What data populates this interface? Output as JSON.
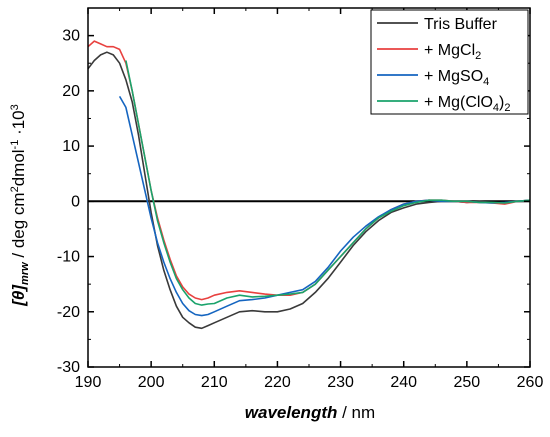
{
  "chart_data": {
    "type": "line",
    "xlabel": {
      "italic": "wavelength",
      "unit": " / nm"
    },
    "ylabel": {
      "prefix": "[θ]",
      "sub": "mrw",
      "unit": " / deg cm",
      "sup2": "2",
      "mid": "dmol",
      "supm1": "-1",
      "dot": " ·10",
      "sup3": "3"
    },
    "xlim": [
      190,
      260
    ],
    "ylim": [
      -30,
      35
    ],
    "xticks": [
      "190",
      "200",
      "210",
      "220",
      "230",
      "240",
      "250",
      "260"
    ],
    "yticks": [
      "30",
      "20",
      "10",
      "0",
      "-10",
      "-20",
      "-30"
    ],
    "zero_line": true,
    "legend_position": "top-right",
    "series": [
      {
        "name": "Tris Buffer",
        "color": "#3a3a3a",
        "x": [
          190,
          191,
          192,
          193,
          194,
          195,
          196,
          197,
          198,
          199,
          200,
          201,
          202,
          203,
          204,
          205,
          206,
          207,
          208,
          209,
          210,
          212,
          214,
          216,
          218,
          220,
          222,
          224,
          226,
          228,
          230,
          232,
          234,
          236,
          238,
          240,
          242,
          244,
          246,
          248,
          250,
          252,
          254,
          256,
          258,
          260
        ],
        "y": [
          24,
          25.5,
          26.5,
          27,
          26.5,
          25,
          22,
          18,
          12,
          5,
          -2,
          -8,
          -12.5,
          -16,
          -19,
          -21,
          -22,
          -22.8,
          -23,
          -22.5,
          -22,
          -21,
          -20,
          -19.8,
          -20,
          -20,
          -19.5,
          -18.5,
          -16.5,
          -14,
          -11,
          -8,
          -5.5,
          -3.5,
          -2,
          -1.2,
          -0.5,
          -0.2,
          0,
          0,
          -0.2,
          0,
          -0.2,
          -0.3,
          0,
          0
        ]
      },
      {
        "name": "+ MgCl₂",
        "label_main": "+ MgCl",
        "label_sub": "2",
        "color": "#e8413f",
        "x": [
          190,
          191,
          192,
          193,
          194,
          195,
          196,
          197,
          198,
          199,
          200,
          201,
          202,
          203,
          204,
          205,
          206,
          207,
          208,
          209,
          210,
          212,
          214,
          216,
          218,
          220,
          222,
          224,
          226,
          228,
          230,
          232,
          234,
          236,
          238,
          240,
          242,
          244,
          246,
          248,
          250,
          252,
          254,
          256,
          258,
          260
        ],
        "y": [
          28,
          29,
          28.5,
          28,
          28,
          27.5,
          25,
          20,
          14,
          8,
          2,
          -3,
          -7,
          -10.5,
          -13.5,
          -15.5,
          -16.8,
          -17.5,
          -17.8,
          -17.5,
          -17,
          -16.5,
          -16.2,
          -16.5,
          -16.8,
          -17,
          -17,
          -16.5,
          -15,
          -12.5,
          -10,
          -7.5,
          -5,
          -3,
          -1.5,
          -0.5,
          0,
          0.2,
          0.2,
          0,
          -0.2,
          -0.2,
          -0.3,
          -0.5,
          0,
          0.2
        ]
      },
      {
        "name": "+ MgSO₄",
        "label_main": "+ MgSO",
        "label_sub": "4",
        "color": "#1565c0",
        "x": [
          195,
          196,
          197,
          198,
          199,
          200,
          201,
          202,
          203,
          204,
          205,
          206,
          207,
          208,
          209,
          210,
          212,
          214,
          216,
          218,
          220,
          222,
          224,
          226,
          228,
          230,
          232,
          234,
          236,
          238,
          240,
          242,
          244,
          246,
          248,
          250,
          252,
          254,
          256,
          258,
          260
        ],
        "y": [
          19,
          17,
          12,
          7,
          2,
          -3,
          -7.5,
          -11,
          -14,
          -16.5,
          -18.5,
          -19.8,
          -20.5,
          -20.7,
          -20.5,
          -20,
          -19,
          -18,
          -17.8,
          -17.5,
          -17,
          -16.5,
          -16,
          -14.5,
          -12,
          -9,
          -6.5,
          -4.5,
          -2.8,
          -1.5,
          -0.5,
          0,
          0.2,
          0,
          0,
          0,
          -0.2,
          -0.3,
          -0.2,
          0,
          0.2
        ]
      },
      {
        "name": "+ Mg(ClO₄)₂",
        "label_main": "+ Mg(ClO",
        "label_sub": "4",
        "label_mid": ")",
        "label_sub2": "2",
        "color": "#1aa36b",
        "x": [
          196,
          197,
          198,
          199,
          200,
          201,
          202,
          203,
          204,
          205,
          206,
          207,
          208,
          209,
          210,
          212,
          214,
          216,
          218,
          220,
          222,
          224,
          226,
          228,
          230,
          232,
          234,
          236,
          238,
          240,
          242,
          244,
          246,
          248,
          250,
          252,
          254,
          256,
          258,
          260
        ],
        "y": [
          25.5,
          20,
          14,
          8,
          2,
          -3.5,
          -7.5,
          -11,
          -14,
          -16,
          -17.5,
          -18.5,
          -18.8,
          -18.6,
          -18.5,
          -17.5,
          -17,
          -17.3,
          -17.2,
          -17,
          -16.8,
          -16.5,
          -15,
          -12.5,
          -10,
          -7.5,
          -5,
          -3,
          -1.8,
          -0.8,
          -0.2,
          0.2,
          0.2,
          0,
          0,
          -0.2,
          -0.2,
          -0.3,
          0,
          0.2
        ]
      }
    ]
  }
}
